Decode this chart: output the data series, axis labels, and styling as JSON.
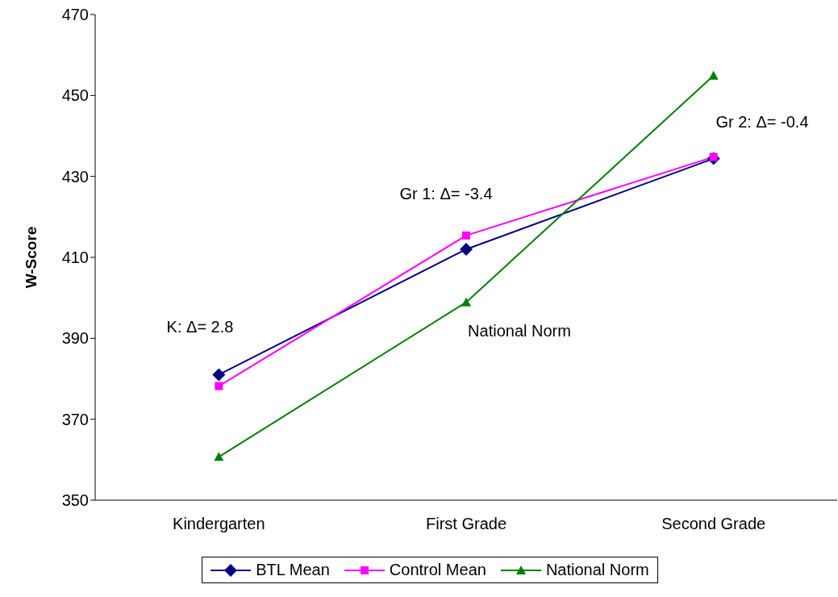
{
  "chart_data": {
    "type": "line",
    "ylabel": "W-Score",
    "categories": [
      "Kindergarten",
      "First Grade",
      "Second Grade"
    ],
    "series": [
      {
        "name": "BTL Mean",
        "color": "#000080",
        "values": [
          381,
          412,
          434.4
        ],
        "marker": "diamond"
      },
      {
        "name": "Control Mean",
        "color": "#ff00ff",
        "values": [
          378.2,
          415.4,
          434.8
        ],
        "marker": "square"
      },
      {
        "name": "National Norm",
        "color": "#008000",
        "values": [
          360.7,
          398.9,
          454.9
        ],
        "marker": "triangle"
      }
    ],
    "ylim": [
      350,
      470
    ],
    "yticks": [
      350,
      370,
      390,
      410,
      430,
      450,
      470
    ],
    "grid": false,
    "legend": "bottom",
    "annotations": [
      "K: Δ= 2.8",
      "Gr 1: Δ= -3.4",
      "National Norm",
      "Gr 2: Δ= -0.4"
    ]
  }
}
